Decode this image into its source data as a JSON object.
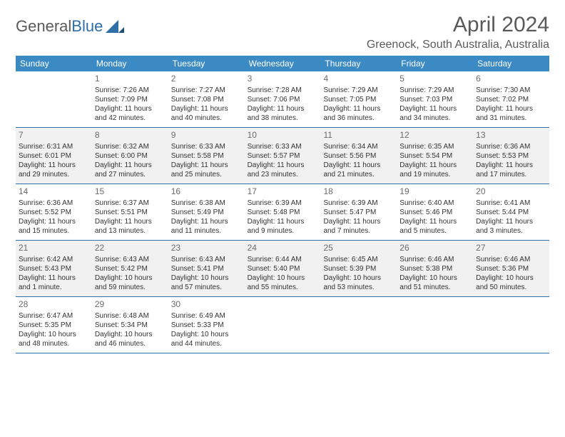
{
  "logo": {
    "part1": "General",
    "part2": "Blue"
  },
  "title": "April 2024",
  "location": "Greenock, South Australia, Australia",
  "colors": {
    "header_bg": "#3b8ac4",
    "header_text": "#ffffff",
    "border": "#2f6fa7",
    "alt_row_bg": "#f1f1f1",
    "text": "#333333",
    "day_number": "#6b6b6b",
    "title_text": "#5a5a5a"
  },
  "day_names": [
    "Sunday",
    "Monday",
    "Tuesday",
    "Wednesday",
    "Thursday",
    "Friday",
    "Saturday"
  ],
  "weeks": [
    {
      "alt": false,
      "days": [
        {
          "n": "",
          "sunrise": "",
          "sunset": "",
          "daylight": ""
        },
        {
          "n": "1",
          "sunrise": "Sunrise: 7:26 AM",
          "sunset": "Sunset: 7:09 PM",
          "daylight": "Daylight: 11 hours and 42 minutes."
        },
        {
          "n": "2",
          "sunrise": "Sunrise: 7:27 AM",
          "sunset": "Sunset: 7:08 PM",
          "daylight": "Daylight: 11 hours and 40 minutes."
        },
        {
          "n": "3",
          "sunrise": "Sunrise: 7:28 AM",
          "sunset": "Sunset: 7:06 PM",
          "daylight": "Daylight: 11 hours and 38 minutes."
        },
        {
          "n": "4",
          "sunrise": "Sunrise: 7:29 AM",
          "sunset": "Sunset: 7:05 PM",
          "daylight": "Daylight: 11 hours and 36 minutes."
        },
        {
          "n": "5",
          "sunrise": "Sunrise: 7:29 AM",
          "sunset": "Sunset: 7:03 PM",
          "daylight": "Daylight: 11 hours and 34 minutes."
        },
        {
          "n": "6",
          "sunrise": "Sunrise: 7:30 AM",
          "sunset": "Sunset: 7:02 PM",
          "daylight": "Daylight: 11 hours and 31 minutes."
        }
      ]
    },
    {
      "alt": true,
      "days": [
        {
          "n": "7",
          "sunrise": "Sunrise: 6:31 AM",
          "sunset": "Sunset: 6:01 PM",
          "daylight": "Daylight: 11 hours and 29 minutes."
        },
        {
          "n": "8",
          "sunrise": "Sunrise: 6:32 AM",
          "sunset": "Sunset: 6:00 PM",
          "daylight": "Daylight: 11 hours and 27 minutes."
        },
        {
          "n": "9",
          "sunrise": "Sunrise: 6:33 AM",
          "sunset": "Sunset: 5:58 PM",
          "daylight": "Daylight: 11 hours and 25 minutes."
        },
        {
          "n": "10",
          "sunrise": "Sunrise: 6:33 AM",
          "sunset": "Sunset: 5:57 PM",
          "daylight": "Daylight: 11 hours and 23 minutes."
        },
        {
          "n": "11",
          "sunrise": "Sunrise: 6:34 AM",
          "sunset": "Sunset: 5:56 PM",
          "daylight": "Daylight: 11 hours and 21 minutes."
        },
        {
          "n": "12",
          "sunrise": "Sunrise: 6:35 AM",
          "sunset": "Sunset: 5:54 PM",
          "daylight": "Daylight: 11 hours and 19 minutes."
        },
        {
          "n": "13",
          "sunrise": "Sunrise: 6:36 AM",
          "sunset": "Sunset: 5:53 PM",
          "daylight": "Daylight: 11 hours and 17 minutes."
        }
      ]
    },
    {
      "alt": false,
      "days": [
        {
          "n": "14",
          "sunrise": "Sunrise: 6:36 AM",
          "sunset": "Sunset: 5:52 PM",
          "daylight": "Daylight: 11 hours and 15 minutes."
        },
        {
          "n": "15",
          "sunrise": "Sunrise: 6:37 AM",
          "sunset": "Sunset: 5:51 PM",
          "daylight": "Daylight: 11 hours and 13 minutes."
        },
        {
          "n": "16",
          "sunrise": "Sunrise: 6:38 AM",
          "sunset": "Sunset: 5:49 PM",
          "daylight": "Daylight: 11 hours and 11 minutes."
        },
        {
          "n": "17",
          "sunrise": "Sunrise: 6:39 AM",
          "sunset": "Sunset: 5:48 PM",
          "daylight": "Daylight: 11 hours and 9 minutes."
        },
        {
          "n": "18",
          "sunrise": "Sunrise: 6:39 AM",
          "sunset": "Sunset: 5:47 PM",
          "daylight": "Daylight: 11 hours and 7 minutes."
        },
        {
          "n": "19",
          "sunrise": "Sunrise: 6:40 AM",
          "sunset": "Sunset: 5:46 PM",
          "daylight": "Daylight: 11 hours and 5 minutes."
        },
        {
          "n": "20",
          "sunrise": "Sunrise: 6:41 AM",
          "sunset": "Sunset: 5:44 PM",
          "daylight": "Daylight: 11 hours and 3 minutes."
        }
      ]
    },
    {
      "alt": true,
      "days": [
        {
          "n": "21",
          "sunrise": "Sunrise: 6:42 AM",
          "sunset": "Sunset: 5:43 PM",
          "daylight": "Daylight: 11 hours and 1 minute."
        },
        {
          "n": "22",
          "sunrise": "Sunrise: 6:43 AM",
          "sunset": "Sunset: 5:42 PM",
          "daylight": "Daylight: 10 hours and 59 minutes."
        },
        {
          "n": "23",
          "sunrise": "Sunrise: 6:43 AM",
          "sunset": "Sunset: 5:41 PM",
          "daylight": "Daylight: 10 hours and 57 minutes."
        },
        {
          "n": "24",
          "sunrise": "Sunrise: 6:44 AM",
          "sunset": "Sunset: 5:40 PM",
          "daylight": "Daylight: 10 hours and 55 minutes."
        },
        {
          "n": "25",
          "sunrise": "Sunrise: 6:45 AM",
          "sunset": "Sunset: 5:39 PM",
          "daylight": "Daylight: 10 hours and 53 minutes."
        },
        {
          "n": "26",
          "sunrise": "Sunrise: 6:46 AM",
          "sunset": "Sunset: 5:38 PM",
          "daylight": "Daylight: 10 hours and 51 minutes."
        },
        {
          "n": "27",
          "sunrise": "Sunrise: 6:46 AM",
          "sunset": "Sunset: 5:36 PM",
          "daylight": "Daylight: 10 hours and 50 minutes."
        }
      ]
    },
    {
      "alt": false,
      "days": [
        {
          "n": "28",
          "sunrise": "Sunrise: 6:47 AM",
          "sunset": "Sunset: 5:35 PM",
          "daylight": "Daylight: 10 hours and 48 minutes."
        },
        {
          "n": "29",
          "sunrise": "Sunrise: 6:48 AM",
          "sunset": "Sunset: 5:34 PM",
          "daylight": "Daylight: 10 hours and 46 minutes."
        },
        {
          "n": "30",
          "sunrise": "Sunrise: 6:49 AM",
          "sunset": "Sunset: 5:33 PM",
          "daylight": "Daylight: 10 hours and 44 minutes."
        },
        {
          "n": "",
          "sunrise": "",
          "sunset": "",
          "daylight": ""
        },
        {
          "n": "",
          "sunrise": "",
          "sunset": "",
          "daylight": ""
        },
        {
          "n": "",
          "sunrise": "",
          "sunset": "",
          "daylight": ""
        },
        {
          "n": "",
          "sunrise": "",
          "sunset": "",
          "daylight": ""
        }
      ]
    }
  ]
}
